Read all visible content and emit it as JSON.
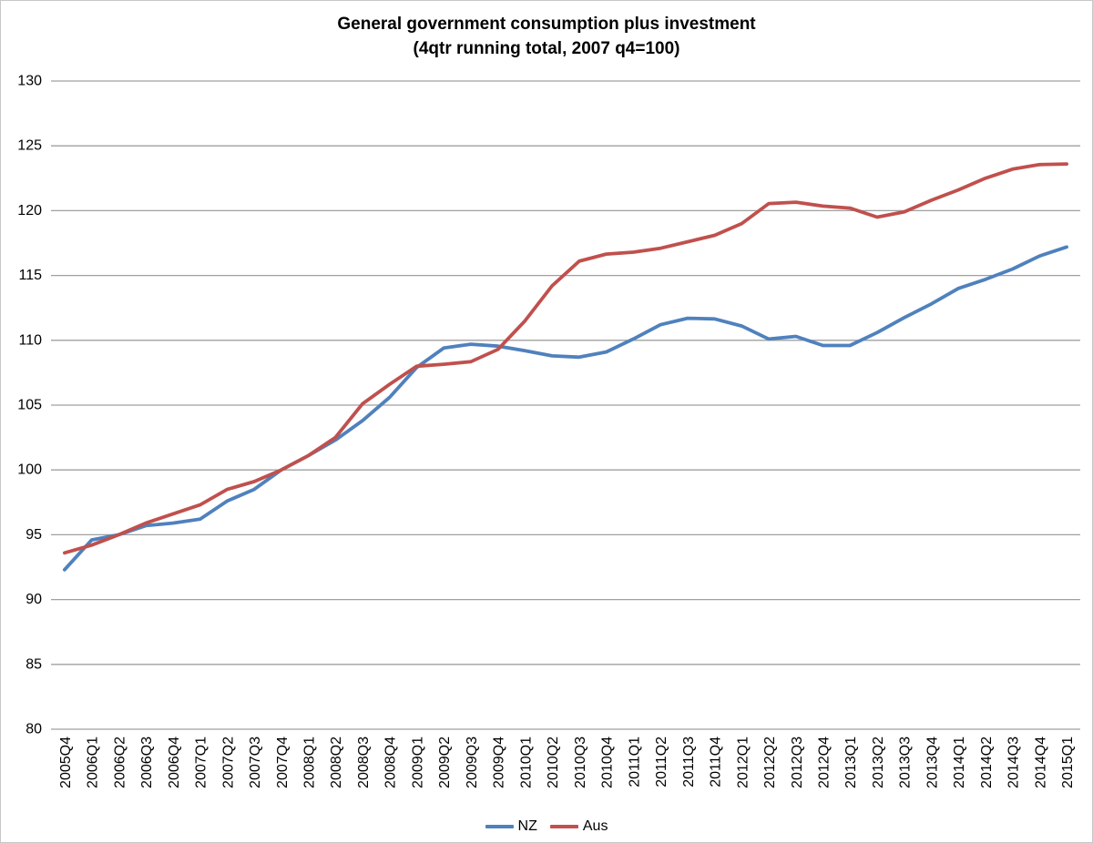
{
  "page": {
    "background": "#ffffff",
    "border_color": "#c8c8c8"
  },
  "chart_data": {
    "type": "line",
    "title": "General government consumption plus investment",
    "subtitle": "(4qtr running total, 2007 q4=100)",
    "x_labels": [
      "2005Q4",
      "2006Q1",
      "2006Q2",
      "2006Q3",
      "2006Q4",
      "2007Q1",
      "2007Q2",
      "2007Q3",
      "2007Q4",
      "2008Q1",
      "2008Q2",
      "2008Q3",
      "2008Q4",
      "2009Q1",
      "2009Q2",
      "2009Q3",
      "2009Q4",
      "2010Q1",
      "2010Q2",
      "2010Q3",
      "2010Q4",
      "2011Q1",
      "2011Q2",
      "2011Q3",
      "2011Q4",
      "2012Q1",
      "2012Q2",
      "2012Q3",
      "2012Q4",
      "2013Q1",
      "2013Q2",
      "2013Q3",
      "2013Q4",
      "2014Q1",
      "2014Q2",
      "2014Q3",
      "2014Q4",
      "2015Q1"
    ],
    "ylim": [
      80,
      130
    ],
    "y_tick_step": 5,
    "y_tick_labels": [
      "80",
      "85",
      "90",
      "95",
      "100",
      "105",
      "110",
      "115",
      "120",
      "125",
      "130"
    ],
    "grid": "horizontal-only",
    "gridline_color": "#a0a0a0",
    "text_color": "#000000",
    "legend_position": "bottom-center",
    "series": [
      {
        "name": "NZ",
        "color": "#4F81BD",
        "values": [
          92.3,
          94.6,
          95.0,
          95.7,
          95.9,
          96.2,
          97.6,
          98.5,
          100.0,
          101.1,
          102.3,
          103.8,
          105.6,
          107.9,
          109.4,
          109.7,
          109.55,
          109.2,
          108.8,
          108.7,
          109.1,
          110.1,
          111.2,
          111.7,
          111.65,
          111.1,
          110.1,
          110.3,
          109.6,
          109.6,
          110.6,
          111.75,
          112.8,
          114.0,
          114.7,
          115.5,
          116.5,
          117.2
        ]
      },
      {
        "name": "Aus",
        "color": "#C0504D",
        "values": [
          93.6,
          94.2,
          95.0,
          95.9,
          96.6,
          97.3,
          98.5,
          99.1,
          100.0,
          101.1,
          102.5,
          105.1,
          106.6,
          108.0,
          108.15,
          108.35,
          109.3,
          111.5,
          114.2,
          116.1,
          116.65,
          116.8,
          117.1,
          117.6,
          118.1,
          119.0,
          120.55,
          120.65,
          120.35,
          120.2,
          119.5,
          119.9,
          120.8,
          121.6,
          122.5,
          123.2,
          123.55,
          123.6
        ]
      }
    ]
  }
}
